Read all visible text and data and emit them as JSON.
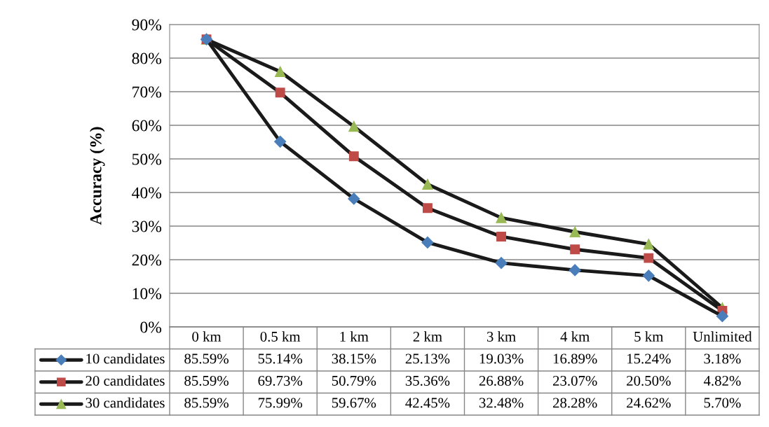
{
  "chart_data": {
    "type": "line",
    "ylabel": "Accuracy (%)",
    "categories": [
      "0 km",
      "0.5 km",
      "1 km",
      "2 km",
      "3 km",
      "4 km",
      "5 km",
      "Unlimited"
    ],
    "series": [
      {
        "name": "10 candidates",
        "color": "#4a7ebb",
        "marker": "diamond",
        "values": [
          85.59,
          55.14,
          38.15,
          25.13,
          19.03,
          16.89,
          15.24,
          3.18
        ],
        "value_labels": [
          "85.59%",
          "55.14%",
          "38.15%",
          "25.13%",
          "19.03%",
          "16.89%",
          "15.24%",
          "3.18%"
        ]
      },
      {
        "name": "20 candidates",
        "color": "#be4b48",
        "marker": "square",
        "values": [
          85.59,
          69.73,
          50.79,
          35.36,
          26.88,
          23.07,
          20.5,
          4.82
        ],
        "value_labels": [
          "85.59%",
          "69.73%",
          "50.79%",
          "35.36%",
          "26.88%",
          "23.07%",
          "20.50%",
          "4.82%"
        ]
      },
      {
        "name": "30 candidates",
        "color": "#98b954",
        "marker": "triangle",
        "values": [
          85.59,
          75.99,
          59.67,
          42.45,
          32.48,
          28.28,
          24.62,
          5.7
        ],
        "value_labels": [
          "85.59%",
          "75.99%",
          "59.67%",
          "42.45%",
          "32.48%",
          "28.28%",
          "24.62%",
          "5.70%"
        ]
      }
    ],
    "ylim": [
      0,
      90
    ],
    "yticks": [
      {
        "value": 0,
        "label": "0%"
      },
      {
        "value": 10,
        "label": "10%"
      },
      {
        "value": 20,
        "label": "20%"
      },
      {
        "value": 30,
        "label": "30%"
      },
      {
        "value": 40,
        "label": "40%"
      },
      {
        "value": 50,
        "label": "50%"
      },
      {
        "value": 60,
        "label": "60%"
      },
      {
        "value": 70,
        "label": "70%"
      },
      {
        "value": 80,
        "label": "80%"
      },
      {
        "value": 90,
        "label": "90%"
      }
    ],
    "grid": "y",
    "legend": "bottom",
    "line_style": "solid"
  }
}
